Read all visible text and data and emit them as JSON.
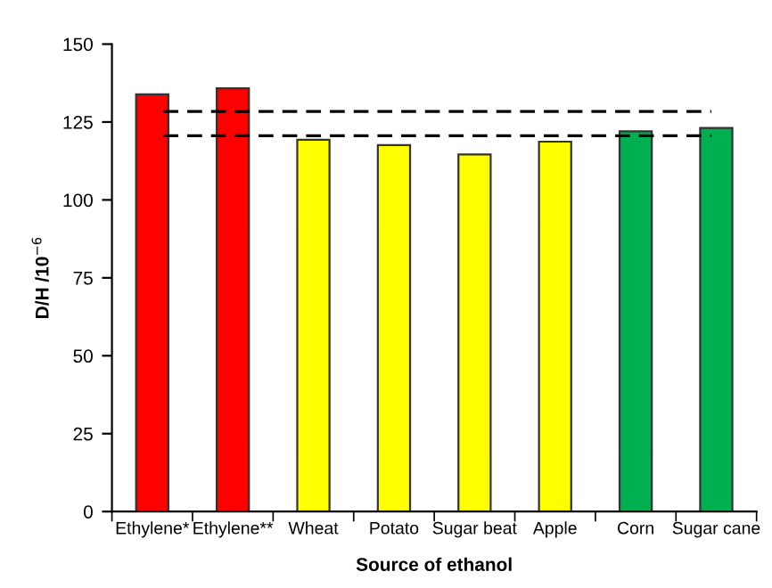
{
  "chart_data": {
    "type": "bar",
    "xlabel": "Source of ethanol",
    "ylabel": "D/H /10$^{−6}$",
    "categories": [
      "Ethylene*",
      "Ethylene**",
      "Wheat",
      "Potato",
      "Sugar beat",
      "Apple",
      "Corn",
      "Sugar cane"
    ],
    "values": [
      133.9,
      135.8,
      119.3,
      117.6,
      114.6,
      118.7,
      122.0,
      123.1
    ],
    "colors": [
      "#ff0000",
      "#ff0000",
      "#ffff00",
      "#ffff00",
      "#ffff00",
      "#ffff00",
      "#00b050",
      "#00b050"
    ],
    "ylim": [
      0,
      150
    ],
    "yticks": [
      0,
      25,
      50,
      75,
      100,
      125,
      150
    ],
    "grid": false,
    "legend": false,
    "ref_lines": [
      {
        "axis": "y",
        "value": 128.4,
        "line_style": "dashed",
        "color": "#000000"
      },
      {
        "axis": "y",
        "value": 120.6,
        "line_style": "dashed",
        "color": "#000000"
      }
    ]
  }
}
